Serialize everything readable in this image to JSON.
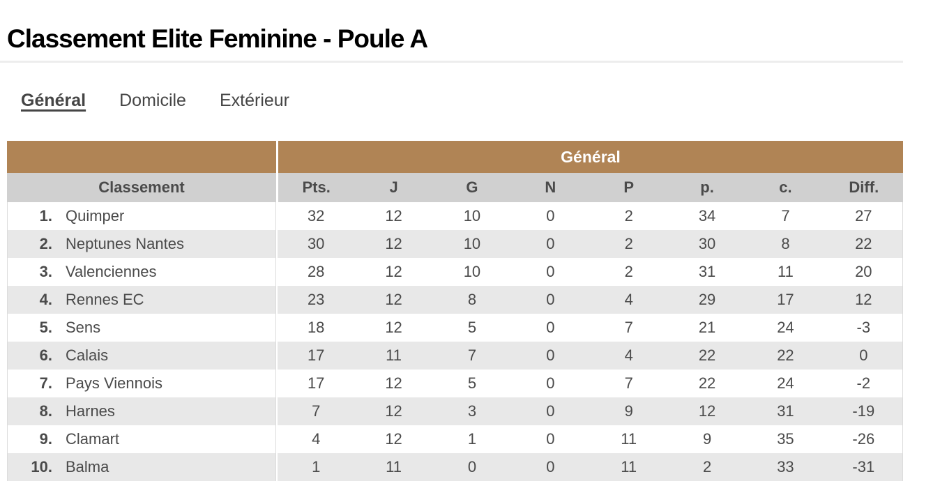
{
  "page": {
    "title": "Classement Elite Feminine - Poule A"
  },
  "tabs": [
    {
      "label": "Général",
      "active": true
    },
    {
      "label": "Domicile",
      "active": false
    },
    {
      "label": "Extérieur",
      "active": false
    }
  ],
  "table": {
    "group_header": {
      "left": "",
      "right": "Général"
    },
    "columns": [
      {
        "key": "classement",
        "label": "Classement"
      },
      {
        "key": "pts",
        "label": "Pts."
      },
      {
        "key": "j",
        "label": "J"
      },
      {
        "key": "g",
        "label": "G"
      },
      {
        "key": "n",
        "label": "N"
      },
      {
        "key": "p",
        "label": "P"
      },
      {
        "key": "pour",
        "label": "p."
      },
      {
        "key": "contre",
        "label": "c."
      },
      {
        "key": "diff",
        "label": "Diff."
      }
    ],
    "rows": [
      {
        "rank": "1.",
        "team": "Quimper",
        "values": [
          32,
          12,
          10,
          0,
          2,
          34,
          7,
          27
        ]
      },
      {
        "rank": "2.",
        "team": "Neptunes Nantes",
        "values": [
          30,
          12,
          10,
          0,
          2,
          30,
          8,
          22
        ]
      },
      {
        "rank": "3.",
        "team": "Valenciennes",
        "values": [
          28,
          12,
          10,
          0,
          2,
          31,
          11,
          20
        ]
      },
      {
        "rank": "4.",
        "team": "Rennes EC",
        "values": [
          23,
          12,
          8,
          0,
          4,
          29,
          17,
          12
        ]
      },
      {
        "rank": "5.",
        "team": "Sens",
        "values": [
          18,
          12,
          5,
          0,
          7,
          21,
          24,
          -3
        ]
      },
      {
        "rank": "6.",
        "team": "Calais",
        "values": [
          17,
          11,
          7,
          0,
          4,
          22,
          22,
          0
        ]
      },
      {
        "rank": "7.",
        "team": "Pays Viennois",
        "values": [
          17,
          12,
          5,
          0,
          7,
          22,
          24,
          -2
        ]
      },
      {
        "rank": "8.",
        "team": "Harnes",
        "values": [
          7,
          12,
          3,
          0,
          9,
          12,
          31,
          -19
        ]
      },
      {
        "rank": "9.",
        "team": "Clamart",
        "values": [
          4,
          12,
          1,
          0,
          11,
          9,
          35,
          -26
        ]
      },
      {
        "rank": "10.",
        "team": "Balma",
        "values": [
          1,
          11,
          0,
          0,
          11,
          2,
          33,
          -31
        ]
      }
    ]
  },
  "colors": {
    "accent_brown": "#b08455",
    "column_header_gray": "#d0d0d0",
    "row_alt_gray": "#e8e8e8",
    "text_gray": "#4a4a4a",
    "title_black": "#000000",
    "rule_gray": "#ededed"
  }
}
